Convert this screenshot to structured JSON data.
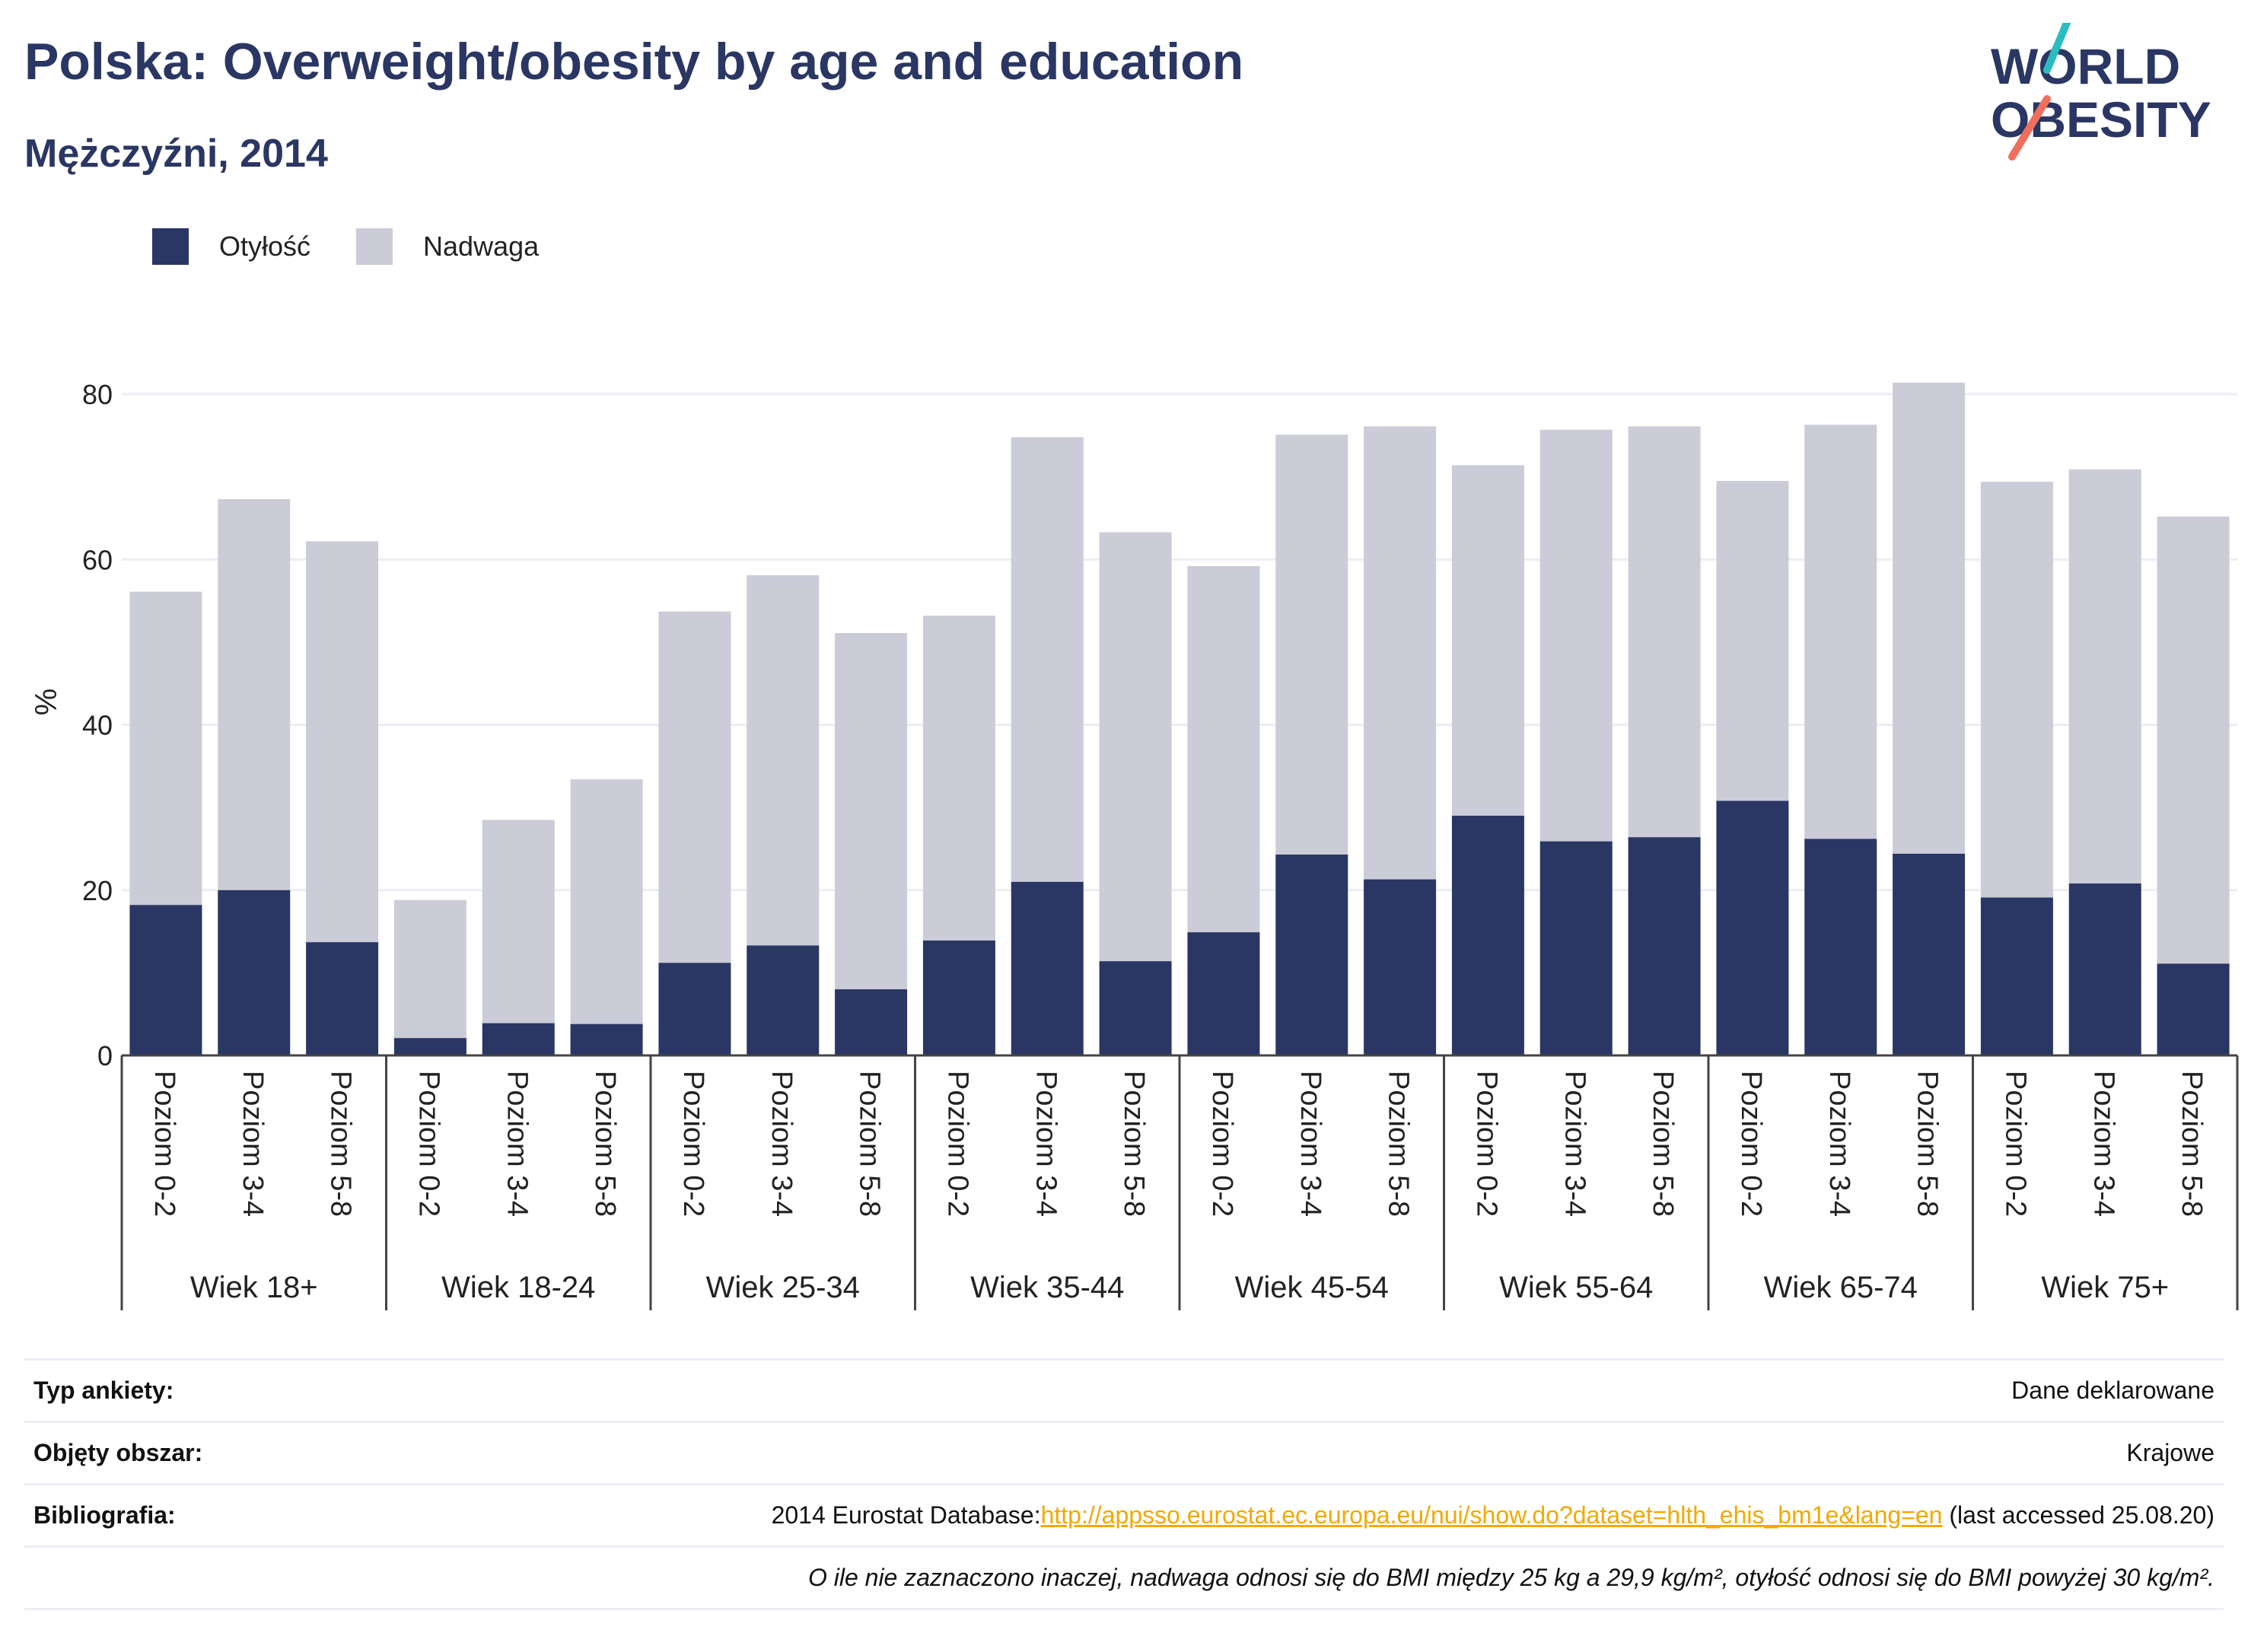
{
  "header": {
    "title": "Polska: Overweight/obesity by age and education",
    "subtitle": "Mężczyźni, 2014"
  },
  "logo": {
    "line1": "WORLD",
    "line2": "OBESITY"
  },
  "colors": {
    "obesity": "#2a3663",
    "overweight": "#cbccd8",
    "link": "#f2a900",
    "logo_teal": "#2bbcbf",
    "logo_coral": "#ef6f5f"
  },
  "chart_data": {
    "type": "bar",
    "stacked": true,
    "ylabel": "%",
    "ylim": [
      0,
      80
    ],
    "yticks": [
      0,
      20,
      40,
      60,
      80
    ],
    "grid": true,
    "legend_position": "top-left",
    "groups": [
      "Wiek 18+",
      "Wiek 18-24",
      "Wiek 25-34",
      "Wiek 35-44",
      "Wiek 45-54",
      "Wiek 55-64",
      "Wiek 65-74",
      "Wiek 75+"
    ],
    "levels": [
      "Poziom 0-2",
      "Poziom 3-4",
      "Poziom 5-8"
    ],
    "series": [
      {
        "name": "Otyłość",
        "values": [
          18.2,
          20.0,
          13.7,
          2.1,
          3.9,
          3.8,
          11.2,
          13.3,
          8.0,
          13.9,
          21.0,
          11.4,
          14.9,
          24.3,
          21.3,
          29.0,
          25.9,
          26.4,
          30.8,
          26.2,
          24.4,
          19.1,
          20.8,
          11.1
        ]
      },
      {
        "name": "Nadwaga",
        "values": [
          37.9,
          47.3,
          48.5,
          16.7,
          24.6,
          29.6,
          42.5,
          44.8,
          43.1,
          39.3,
          53.8,
          51.9,
          44.3,
          50.8,
          54.8,
          42.4,
          49.8,
          49.7,
          38.7,
          50.1,
          57.0,
          50.3,
          50.1,
          54.1
        ]
      }
    ]
  },
  "meta": {
    "survey_label": "Typ ankiety:",
    "survey_value": "Dane deklarowane",
    "area_label": "Objęty obszar:",
    "area_value": "Krajowe",
    "bib_label": "Bibliografia:",
    "bib_prefix": "2014 Eurostat Database:",
    "bib_link": "http://appsso.eurostat.ec.europa.eu/nui/show.do?dataset=hlth_ehis_bm1e&lang=en",
    "bib_suffix": " (last accessed 25.08.20)",
    "note": "O ile nie zaznaczono inaczej, nadwaga odnosi się do BMI między 25 kg a 29,9 kg/m², otyłość odnosi się do BMI powyżej 30 kg/m²."
  }
}
